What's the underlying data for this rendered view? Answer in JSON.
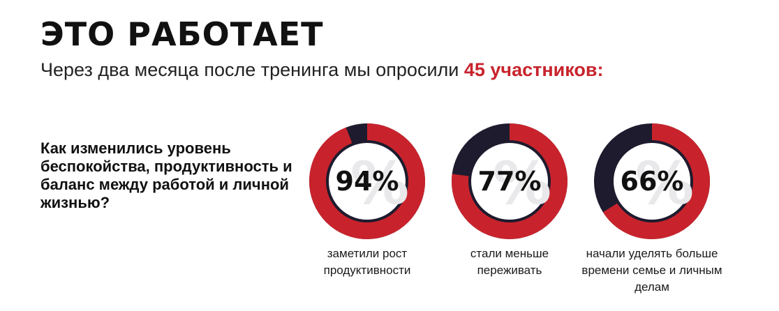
{
  "header": {
    "title": "ЭТО РАБОТАЕТ",
    "subtitle_prefix": "Через два месяца после тренинга мы опросили ",
    "subtitle_highlight": "45 участников:"
  },
  "question": "Как изменились уровень беспокойства, продуктивность и баланс между работой и личной жизнью?",
  "colors": {
    "accent": "#c8232c",
    "dark": "#1e1b2e"
  },
  "stats": [
    {
      "value": 94,
      "label": "94%",
      "caption": "заметили рост продуктивности"
    },
    {
      "value": 77,
      "label": "77%",
      "caption": "стали меньше переживать"
    },
    {
      "value": 66,
      "label": "66%",
      "caption": "начали уделять больше времени семье и личным делам"
    }
  ]
}
